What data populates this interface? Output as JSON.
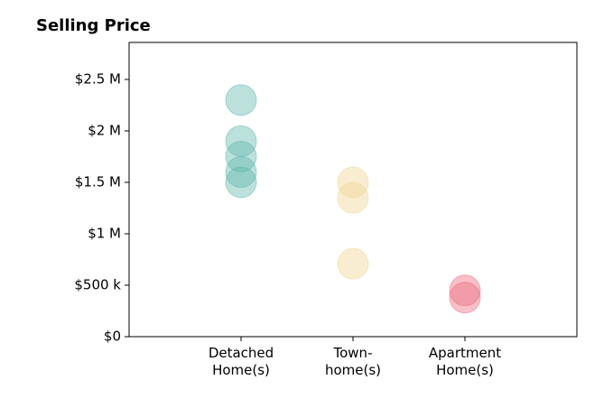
{
  "chart_data": {
    "type": "scatter",
    "title": "Selling Price",
    "categories": [
      "Detached\nHome(s)",
      "Town-\nhome(s)",
      "Apartment\nHome(s)"
    ],
    "values": [
      [
        2300000,
        1900000,
        1750000,
        1600000,
        1500000
      ],
      [
        1500000,
        1350000,
        710000
      ],
      [
        450000,
        380000
      ]
    ],
    "colors": [
      "#5fb8ac",
      "#f0d592",
      "#ec6a7e"
    ],
    "ylim": [
      0,
      2860000
    ],
    "yticks": [
      {
        "value": 0,
        "label": "$0"
      },
      {
        "value": 500000,
        "label": "$500 k"
      },
      {
        "value": 1000000,
        "label": "$1 M"
      },
      {
        "value": 1500000,
        "label": "$1.5 M"
      },
      {
        "value": 2000000,
        "label": "$2 M"
      },
      {
        "value": 2500000,
        "label": "$2.5 M"
      }
    ],
    "grid": false
  }
}
